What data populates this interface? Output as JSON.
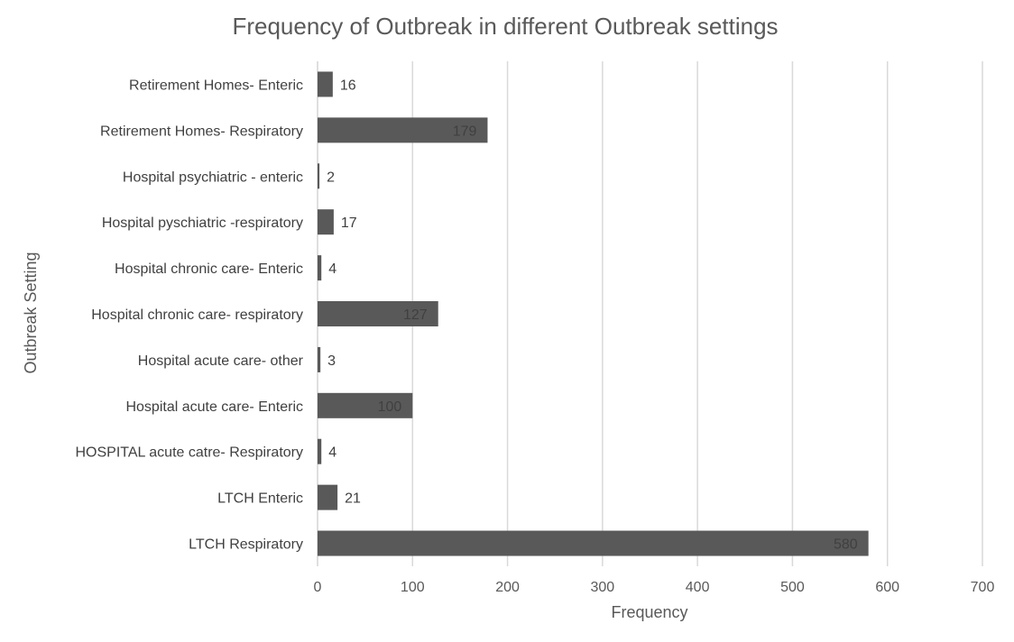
{
  "chart_data": {
    "type": "bar",
    "orientation": "horizontal",
    "title": "Frequency of Outbreak in different Outbreak settings",
    "xlabel": "Frequency",
    "ylabel": "Outbreak Setting",
    "xlim": [
      0,
      700
    ],
    "xticks": [
      0,
      100,
      200,
      300,
      400,
      500,
      600,
      700
    ],
    "categories": [
      "Retirement Homes- Enteric",
      "Retirement Homes- Respiratory",
      "Hospital psychiatric - enteric",
      "Hospital pyschiatric -respiratory",
      "Hospital chronic care- Enteric",
      "Hospital chronic care- respiratory",
      "Hospital acute care- other",
      "Hospital acute care- Enteric",
      "HOSPITAL acute catre- Respiratory",
      "LTCH Enteric",
      "LTCH Respiratory"
    ],
    "values": [
      16,
      179,
      2,
      17,
      4,
      127,
      3,
      100,
      4,
      21,
      580
    ],
    "grid": "vertical",
    "legend": "none",
    "colors": {
      "bar": "#595959",
      "grid": "#d9d9d9",
      "text": "#595959"
    }
  }
}
